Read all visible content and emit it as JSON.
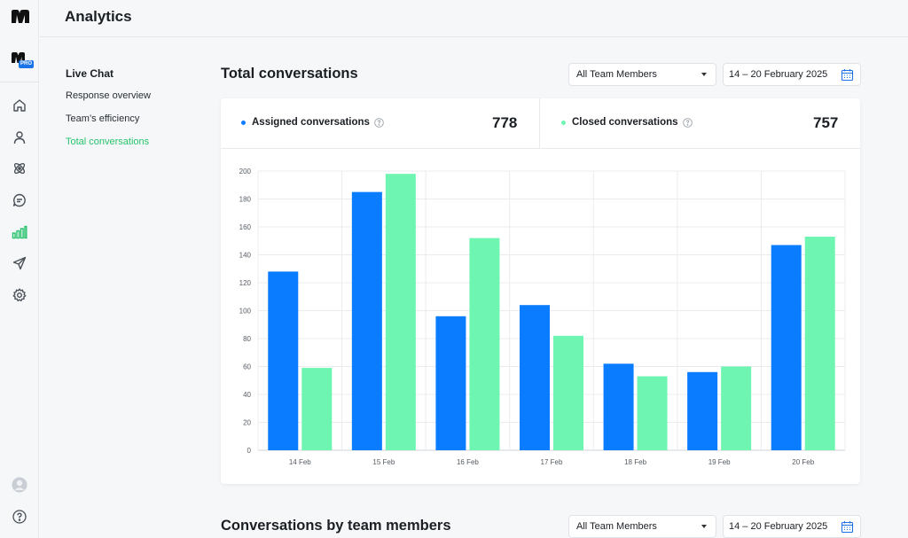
{
  "header": {
    "title": "Analytics"
  },
  "rail": {
    "pro_badge": "PRO",
    "icons": [
      "home-icon",
      "user-icon",
      "integrations-icon",
      "chat-icon",
      "analytics-icon",
      "send-icon",
      "settings-icon"
    ]
  },
  "subnav": {
    "heading": "Live Chat",
    "items": [
      "Response overview",
      "Team’s efficiency",
      "Total conversations"
    ]
  },
  "section1": {
    "title": "Total conversations",
    "team_filter": "All Team Members",
    "date_range": "14 – 20 February 2025"
  },
  "stats": {
    "assigned": {
      "label": "Assigned conversations",
      "value": "778"
    },
    "closed": {
      "label": "Closed conversations",
      "value": "757"
    }
  },
  "section2": {
    "title": "Conversations by team members",
    "team_filter": "All Team Members",
    "date_range": "14 – 20 February 2025"
  },
  "colors": {
    "assigned": "#0a7cff",
    "closed": "#6ff5b2",
    "active": "#27c26c"
  },
  "chart_data": {
    "type": "bar",
    "categories": [
      "14 Feb",
      "15 Feb",
      "16 Feb",
      "17 Feb",
      "18 Feb",
      "19 Feb",
      "20 Feb"
    ],
    "series": [
      {
        "name": "Assigned conversations",
        "values": [
          128,
          185,
          96,
          104,
          62,
          56,
          147
        ]
      },
      {
        "name": "Closed conversations",
        "values": [
          59,
          198,
          152,
          82,
          53,
          60,
          153
        ]
      }
    ],
    "ylim": [
      0,
      200
    ],
    "yticks": [
      0,
      20,
      40,
      60,
      80,
      100,
      120,
      140,
      160,
      180,
      200
    ],
    "grid": true,
    "title": "",
    "xlabel": "",
    "ylabel": ""
  }
}
